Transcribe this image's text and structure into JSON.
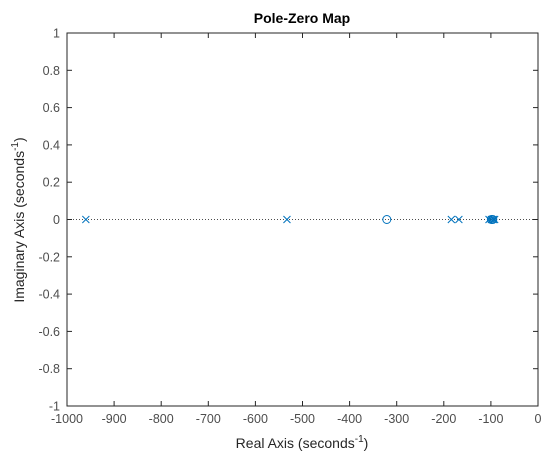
{
  "chart_data": {
    "type": "scatter",
    "title": "Pole-Zero Map",
    "xlabel": {
      "text": "Real Axis (seconds",
      "sup": "-1",
      "close": ")"
    },
    "ylabel": {
      "text": "Imaginary Axis (seconds",
      "sup": "-1",
      "close": ")"
    },
    "xlim": [
      -1000,
      0
    ],
    "ylim": [
      -1,
      1
    ],
    "xticks": [
      -1000,
      -900,
      -800,
      -700,
      -600,
      -500,
      -400,
      -300,
      -200,
      -100,
      0
    ],
    "yticks": [
      -1,
      -0.8,
      -0.6,
      -0.4,
      -0.2,
      0,
      0.2,
      0.4,
      0.6,
      0.8,
      1
    ],
    "xtick_labels": [
      "-1000",
      "-900",
      "-800",
      "-700",
      "-600",
      "-500",
      "-400",
      "-300",
      "-200",
      "-100",
      "0"
    ],
    "ytick_labels": [
      "-1",
      "-0.8",
      "-0.6",
      "-0.4",
      "-0.2",
      "0",
      "0.2",
      "0.4",
      "0.6",
      "0.8",
      "1"
    ],
    "grid": false,
    "zero_line": "dotted",
    "series": [
      {
        "marker": "x",
        "points": [
          [
            -960,
            0
          ],
          [
            -533,
            0
          ],
          [
            -184,
            0
          ],
          [
            -168,
            0
          ],
          [
            -104,
            0
          ],
          [
            -99,
            0
          ],
          [
            -95,
            0
          ],
          [
            -92,
            0
          ]
        ]
      },
      {
        "marker": "o",
        "points": [
          [
            -321,
            0
          ],
          [
            -99,
            0
          ],
          [
            -96,
            0
          ]
        ]
      }
    ],
    "colors": {
      "marker": "#0072BD",
      "axes": "#262626",
      "ticks": "#4d4d4d"
    }
  }
}
